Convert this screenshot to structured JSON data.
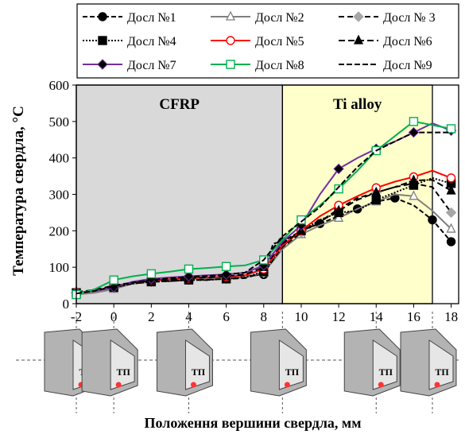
{
  "chart_data": {
    "type": "line",
    "title": "",
    "xlabel": "Положення вершини свердла, мм",
    "ylabel": "Температура свердла, °C",
    "xlim": [
      -2,
      18.4
    ],
    "ylim": [
      0,
      600
    ],
    "xticks": [
      -2,
      0,
      2,
      4,
      6,
      8,
      10,
      12,
      14,
      16,
      18
    ],
    "yticks": [
      0,
      100,
      200,
      300,
      400,
      500,
      600
    ],
    "grid": false,
    "legend_position": "top",
    "regions": [
      {
        "label": "CFRP",
        "from": -2,
        "to": 9,
        "color": "#d9d9d9"
      },
      {
        "label": "Ti alloy",
        "from": 9,
        "to": 17,
        "color": "#ffffcc"
      }
    ],
    "series": [
      {
        "name": "Досл №1",
        "color": "#000000",
        "dash": "6,3",
        "marker": "circle",
        "marker_fill": "#000000",
        "x": [
          -2,
          -1,
          0,
          1,
          2,
          3,
          4,
          5,
          6,
          7,
          8,
          8.5,
          9,
          10,
          11,
          12,
          13,
          14,
          15,
          16,
          17,
          18
        ],
        "y": [
          30,
          35,
          45,
          55,
          60,
          62,
          65,
          65,
          70,
          75,
          80,
          165,
          170,
          200,
          220,
          240,
          260,
          280,
          290,
          270,
          230,
          170
        ]
      },
      {
        "name": "Досл №2",
        "color": "#7f7f7f",
        "dash": "",
        "marker": "triangle",
        "marker_fill": "#ffffff",
        "x": [
          -2,
          -1,
          0,
          1,
          2,
          3,
          4,
          5,
          6,
          7,
          8,
          9,
          10,
          11,
          12,
          13,
          14,
          15,
          16,
          17,
          18
        ],
        "y": [
          25,
          30,
          40,
          55,
          62,
          65,
          68,
          68,
          70,
          72,
          85,
          150,
          190,
          215,
          235,
          260,
          280,
          300,
          295,
          255,
          205
        ]
      },
      {
        "name": "Досл № 3",
        "color": "#000000",
        "dash": "7,4",
        "marker": "diamond",
        "marker_fill": "#a6a6a6",
        "x": [
          -2,
          -1,
          0,
          1,
          2,
          3,
          4,
          5,
          6,
          7,
          8,
          9,
          10,
          11,
          12,
          13,
          14,
          15,
          16,
          17,
          18
        ],
        "y": [
          30,
          35,
          45,
          55,
          60,
          62,
          65,
          66,
          68,
          70,
          85,
          155,
          195,
          225,
          260,
          290,
          305,
          320,
          330,
          320,
          250
        ]
      },
      {
        "name": "Досл №4",
        "color": "#000000",
        "dash": "2,2",
        "marker": "square",
        "marker_fill": "#000000",
        "x": [
          -2,
          -1,
          0,
          1,
          2,
          3,
          4,
          5,
          6,
          7,
          8,
          9,
          10,
          11,
          12,
          13,
          14,
          15,
          16,
          17,
          18
        ],
        "y": [
          30,
          35,
          45,
          55,
          60,
          62,
          65,
          65,
          68,
          72,
          88,
          158,
          200,
          230,
          250,
          255,
          285,
          305,
          325,
          345,
          330
        ]
      },
      {
        "name": "Досл №5",
        "color": "#ff0000",
        "dash": "",
        "marker": "circle",
        "marker_fill": "#ffffff",
        "x": [
          -2,
          -1,
          0,
          1,
          2,
          3,
          4,
          5,
          6,
          7,
          8,
          9,
          10,
          11,
          12,
          13,
          14,
          15,
          16,
          17,
          18
        ],
        "y": [
          30,
          35,
          48,
          58,
          64,
          67,
          70,
          72,
          74,
          78,
          95,
          160,
          200,
          240,
          270,
          295,
          318,
          335,
          348,
          365,
          345
        ]
      },
      {
        "name": "Досл №6",
        "color": "#000000",
        "dash": "8,4",
        "marker": "triangle",
        "marker_fill": "#000000",
        "x": [
          -2,
          -1,
          0,
          1,
          2,
          3,
          4,
          5,
          6,
          7,
          8,
          9,
          10,
          11,
          12,
          13,
          14,
          15,
          16,
          17,
          18
        ],
        "y": [
          32,
          38,
          50,
          58,
          63,
          66,
          70,
          72,
          75,
          80,
          100,
          165,
          200,
          225,
          255,
          285,
          305,
          320,
          338,
          340,
          310
        ]
      },
      {
        "name": "Досл №7",
        "color": "#7030a0",
        "dash": "",
        "marker": "diamond",
        "marker_fill": "#000000",
        "x": [
          -2,
          -1,
          0,
          1,
          2,
          3,
          4,
          5,
          6,
          7,
          8,
          9,
          10,
          11,
          12,
          13,
          14,
          15,
          16,
          17,
          18
        ],
        "y": [
          30,
          35,
          45,
          60,
          68,
          72,
          75,
          78,
          80,
          85,
          105,
          170,
          215,
          300,
          370,
          400,
          425,
          445,
          470,
          495,
          475
        ]
      },
      {
        "name": "Досл №8",
        "color": "#00b050",
        "dash": "",
        "marker": "square",
        "marker_fill": "#ffffff",
        "x": [
          -2,
          -1,
          0,
          1,
          2,
          3,
          4,
          5,
          6,
          7,
          8,
          9,
          10,
          11,
          12,
          13,
          14,
          15,
          16,
          17,
          18
        ],
        "y": [
          25,
          40,
          65,
          75,
          82,
          88,
          95,
          98,
          102,
          105,
          120,
          175,
          230,
          270,
          315,
          365,
          420,
          460,
          500,
          490,
          480
        ]
      },
      {
        "name": "Досл №9",
        "color": "#000000",
        "dash": "7,3",
        "marker": "none",
        "marker_fill": "",
        "x": [
          -2,
          -1,
          0,
          1,
          2,
          3,
          4,
          5,
          6,
          7,
          8,
          9,
          10,
          11,
          12,
          13,
          14,
          15,
          16,
          17,
          18
        ],
        "y": [
          28,
          35,
          48,
          58,
          65,
          70,
          74,
          76,
          80,
          85,
          120,
          185,
          225,
          265,
          320,
          375,
          420,
          445,
          470,
          470,
          470
        ]
      }
    ],
    "drill_label": "ТП",
    "drill_positions": [
      -2,
      0,
      4,
      9,
      14,
      17
    ]
  }
}
